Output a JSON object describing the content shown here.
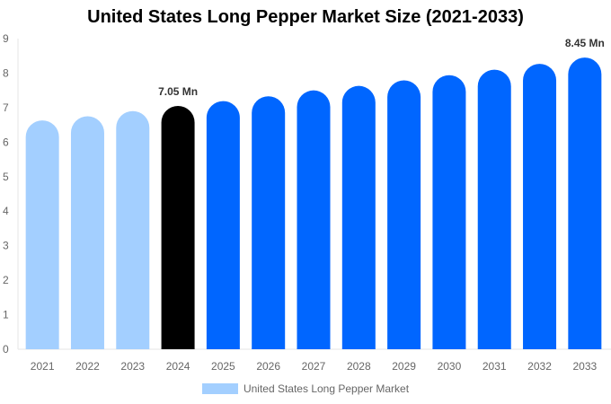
{
  "chart_data": {
    "type": "bar",
    "title": "United States Long Pepper Market Size (2021-2033)",
    "categories": [
      "2021",
      "2022",
      "2023",
      "2024",
      "2025",
      "2026",
      "2027",
      "2028",
      "2029",
      "2030",
      "2031",
      "2032",
      "2033"
    ],
    "series": [
      {
        "name": "United States Long Pepper Market",
        "values": [
          6.63,
          6.75,
          6.9,
          7.05,
          7.19,
          7.33,
          7.5,
          7.63,
          7.79,
          7.94,
          8.1,
          8.27,
          8.45
        ]
      }
    ],
    "bar_colors": [
      "#a3cfff",
      "#a3cfff",
      "#a3cfff",
      "#000000",
      "#0066ff",
      "#0066ff",
      "#0066ff",
      "#0066ff",
      "#0066ff",
      "#0066ff",
      "#0066ff",
      "#0066ff",
      "#0066ff"
    ],
    "data_labels": [
      {
        "category": "2024",
        "text": "7.05 Mn"
      },
      {
        "category": "2033",
        "text": "8.45 Mn"
      }
    ],
    "ylim": [
      0,
      9
    ],
    "yticks": [
      0,
      1,
      2,
      3,
      4,
      5,
      6,
      7,
      8,
      9
    ],
    "xlabel": "",
    "ylabel": "",
    "grid": false,
    "legend": "bottom",
    "legend_color": "#a3cfff"
  }
}
